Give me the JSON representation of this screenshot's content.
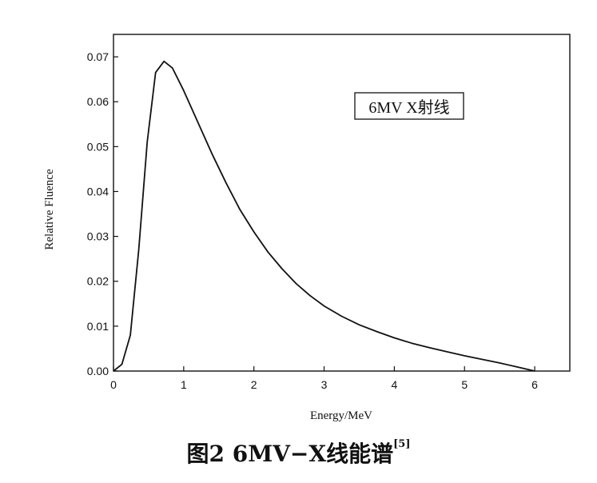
{
  "chart_data": {
    "type": "line",
    "xlabel": "Energy/MeV",
    "ylabel": "Relative Fluence",
    "xlim": [
      0,
      6.5
    ],
    "ylim": [
      0,
      0.075
    ],
    "x_ticks": [
      "0",
      "1",
      "2",
      "3",
      "4",
      "5",
      "6"
    ],
    "y_ticks": [
      "0.00",
      "0.01",
      "0.02",
      "0.03",
      "0.04",
      "0.05",
      "0.06",
      "0.07"
    ],
    "grid": false,
    "legend_position": "top-right",
    "series": [
      {
        "name": "6MV X射线",
        "color": "#111111",
        "x": [
          0,
          0.12,
          0.24,
          0.36,
          0.48,
          0.6,
          0.72,
          0.84,
          1.0,
          1.2,
          1.4,
          1.6,
          1.8,
          2.0,
          2.2,
          2.4,
          2.6,
          2.8,
          3.0,
          3.25,
          3.5,
          3.75,
          4.0,
          4.25,
          4.5,
          4.75,
          5.0,
          5.25,
          5.5,
          5.75,
          6.0
        ],
        "y": [
          0.0,
          0.0015,
          0.008,
          0.027,
          0.051,
          0.0665,
          0.069,
          0.0675,
          0.0625,
          0.0555,
          0.0485,
          0.042,
          0.036,
          0.031,
          0.0265,
          0.0228,
          0.0195,
          0.0168,
          0.0145,
          0.0122,
          0.0103,
          0.0088,
          0.0074,
          0.0062,
          0.0052,
          0.0043,
          0.0034,
          0.0026,
          0.0018,
          0.0009,
          0.0
        ]
      }
    ]
  },
  "caption": {
    "text": "图2   6MV−X线能谱",
    "ref": "[5]"
  }
}
